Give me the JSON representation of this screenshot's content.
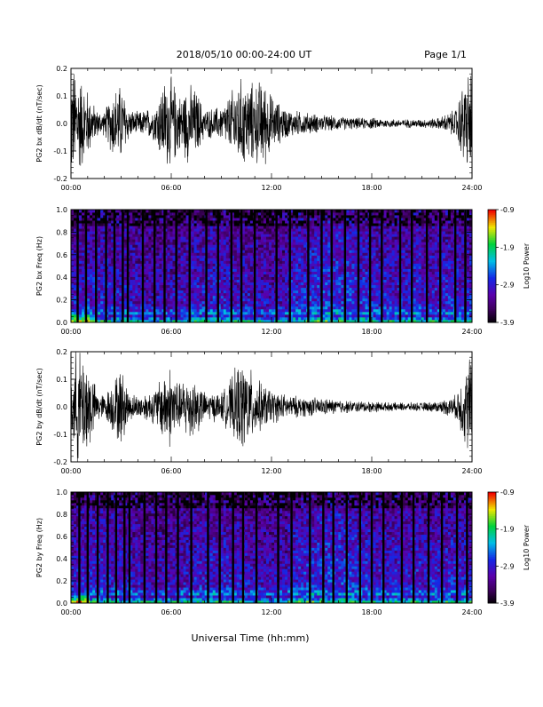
{
  "header": {
    "title": "2018/05/10   00:00-24:00 UT",
    "page": "Page 1/1"
  },
  "xlabel": "Universal Time (hh:mm)",
  "x_ticks": [
    "00:00",
    "06:00",
    "12:00",
    "18:00",
    "24:00"
  ],
  "chart_data": [
    {
      "type": "line",
      "ylabel": "PG2 bx dB/dt (nT/sec)",
      "xlim": [
        0,
        24
      ],
      "ylim": [
        -0.2,
        0.2
      ],
      "y_ticks": [
        "0.2",
        "0.1",
        "0.0",
        "-0.1",
        "-0.2"
      ],
      "envelope": {
        "x_hours": [
          0,
          0.3,
          1,
          1.5,
          2,
          2.5,
          3,
          3.5,
          4,
          5,
          5.5,
          6,
          6.5,
          7,
          7.5,
          8,
          9,
          9.5,
          10,
          10.5,
          11,
          11.5,
          12,
          12.5,
          13,
          14,
          15,
          16,
          17,
          18,
          19,
          20,
          21,
          22,
          23,
          23.5,
          24
        ],
        "amplitude": [
          0.2,
          0.2,
          0.12,
          0.05,
          0.04,
          0.12,
          0.14,
          0.05,
          0.04,
          0.06,
          0.15,
          0.16,
          0.1,
          0.14,
          0.12,
          0.05,
          0.06,
          0.1,
          0.16,
          0.15,
          0.14,
          0.16,
          0.1,
          0.07,
          0.05,
          0.04,
          0.03,
          0.025,
          0.02,
          0.02,
          0.015,
          0.015,
          0.015,
          0.02,
          0.05,
          0.15,
          0.2
        ]
      }
    },
    {
      "type": "heatmap",
      "ylabel": "PG2 bx Freq (Hz)",
      "xlim": [
        0,
        24
      ],
      "ylim": [
        0,
        1
      ],
      "y_ticks": [
        "1.0",
        "0.8",
        "0.6",
        "0.4",
        "0.2",
        "0.0"
      ],
      "colorbar": {
        "label": "Log10 Power",
        "ticks": [
          "-0.9",
          "-1.9",
          "-2.9",
          "-3.9"
        ],
        "range": [
          -3.9,
          -0.9
        ]
      },
      "dark_stripes_hours": [
        0.4,
        0.9,
        1.5,
        2.1,
        2.6,
        3.1,
        3.4,
        4.3,
        5.0,
        5.6,
        6.3,
        7.1,
        8.1,
        8.8,
        9.6,
        10.2,
        11.0,
        12.3,
        13.1,
        14.2,
        15.0,
        15.6,
        16.4,
        17.2,
        17.9,
        18.6,
        19.7,
        20.4,
        21.3,
        22.1,
        23.0,
        23.6
      ]
    },
    {
      "type": "line",
      "ylabel": "PG2 by dB/dt (nT/sec)",
      "xlim": [
        0,
        24
      ],
      "ylim": [
        -0.2,
        0.2
      ],
      "y_ticks": [
        "0.2",
        "0.1",
        "0.0",
        "-0.1",
        "-0.2"
      ],
      "envelope": {
        "x_hours": [
          0,
          0.3,
          1,
          1.5,
          2,
          2.5,
          3,
          3.5,
          4,
          5,
          5.5,
          6,
          6.5,
          7,
          7.5,
          8,
          9,
          9.5,
          10,
          10.5,
          11,
          11.5,
          12,
          12.5,
          13,
          14,
          15,
          16,
          17,
          18,
          19,
          20,
          21,
          22,
          23,
          23.5,
          24
        ],
        "amplitude": [
          0.08,
          0.2,
          0.18,
          0.06,
          0.04,
          0.09,
          0.14,
          0.05,
          0.04,
          0.06,
          0.12,
          0.15,
          0.08,
          0.12,
          0.1,
          0.05,
          0.05,
          0.09,
          0.15,
          0.16,
          0.1,
          0.08,
          0.06,
          0.05,
          0.04,
          0.035,
          0.03,
          0.025,
          0.02,
          0.02,
          0.015,
          0.015,
          0.015,
          0.02,
          0.04,
          0.12,
          0.2
        ]
      }
    },
    {
      "type": "heatmap",
      "ylabel": "PG2 by Freq (Hz)",
      "xlim": [
        0,
        24
      ],
      "ylim": [
        0,
        1
      ],
      "y_ticks": [
        "1.0",
        "0.8",
        "0.6",
        "0.4",
        "0.2",
        "0.0"
      ],
      "colorbar": {
        "label": "Log10 Power",
        "ticks": [
          "-0.9",
          "-1.9",
          "-2.9",
          "-3.9"
        ],
        "range": [
          -3.9,
          -0.9
        ]
      },
      "dark_stripes_hours": [
        0.5,
        1.0,
        1.6,
        2.2,
        2.7,
        3.2,
        3.5,
        4.4,
        5.1,
        5.7,
        6.4,
        7.2,
        8.2,
        8.9,
        9.7,
        10.3,
        11.1,
        12.4,
        13.2,
        14.3,
        15.1,
        15.7,
        16.5,
        17.3,
        18.0,
        18.7,
        19.8,
        20.5,
        21.4,
        22.2,
        23.1,
        23.7
      ]
    }
  ]
}
